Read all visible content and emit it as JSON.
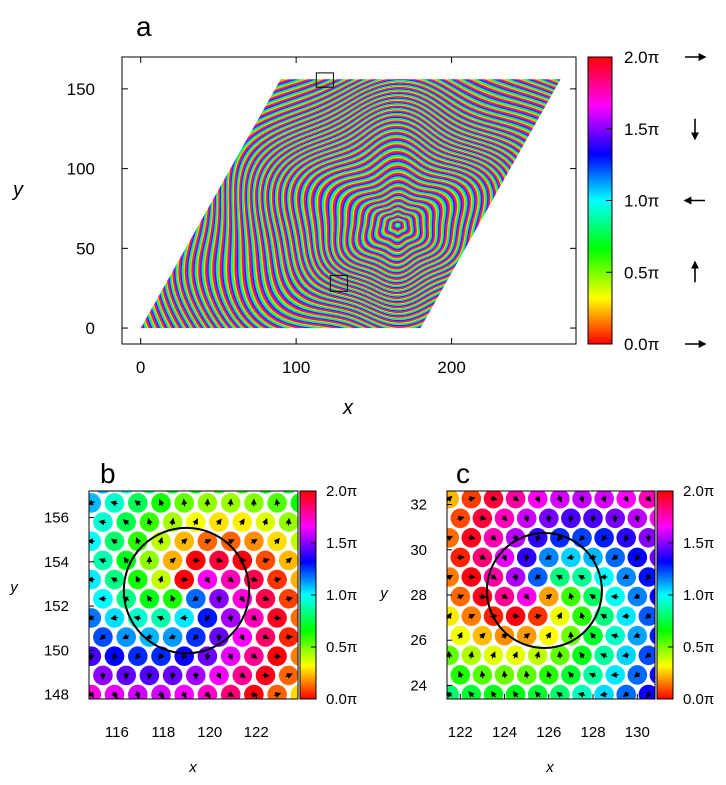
{
  "panels": [
    {
      "letter": "a",
      "xlabel": "x",
      "ylabel": "y",
      "xticks": [
        "0",
        "100",
        "200"
      ],
      "yticks": [
        "0",
        "50",
        "100",
        "150"
      ],
      "xlim": [
        -12,
        280
      ],
      "ylim": [
        -10,
        170
      ],
      "colorbar_ticks": [
        "0.0π",
        "0.5π",
        "1.0π",
        "1.5π",
        "2.0π"
      ],
      "colorbar_arrows": [
        "right",
        "up",
        "left",
        "down",
        "right"
      ]
    },
    {
      "letter": "b",
      "xlabel": "x",
      "ylabel": "y",
      "xticks": [
        "116",
        "118",
        "120",
        "122"
      ],
      "yticks": [
        "148",
        "150",
        "152",
        "154",
        "156"
      ],
      "xlim": [
        114.8,
        123.8
      ],
      "ylim": [
        147.8,
        157.2
      ],
      "colorbar_ticks": [
        "0.0π",
        "0.5π",
        "1.0π",
        "1.5π",
        "2.0π"
      ]
    },
    {
      "letter": "c",
      "xlabel": "x",
      "ylabel": "y",
      "xticks": [
        "122",
        "124",
        "126",
        "128",
        "130"
      ],
      "yticks": [
        "24",
        "26",
        "28",
        "30",
        "32"
      ],
      "xlim": [
        121.4,
        130.8
      ],
      "ylim": [
        23.4,
        32.6
      ],
      "colorbar_ticks": [
        "0.0π",
        "0.5π",
        "1.0π",
        "1.5π",
        "2.0π"
      ]
    }
  ],
  "chart_data": [
    {
      "type": "heatmap",
      "panel": "a",
      "xlabel": "x",
      "ylabel": "y",
      "xlim": [
        -12,
        280
      ],
      "ylim": [
        -10,
        170
      ],
      "xticks": [
        0,
        100,
        200
      ],
      "yticks": [
        0,
        50,
        100,
        150
      ],
      "domain_corners": [
        [
          0,
          0
        ],
        [
          180,
          0
        ],
        [
          270,
          156
        ],
        [
          90,
          156
        ]
      ],
      "value": "in-plane spin angle, 0 to 2π (stripe domains)",
      "color_scale": "hue wheel 0→2π",
      "zoom_boxes": [
        {
          "x": [
            113,
            124
          ],
          "y": [
            151,
            160
          ]
        },
        {
          "x": [
            122,
            133
          ],
          "y": [
            23,
            33
          ]
        }
      ]
    },
    {
      "type": "scatter",
      "panel": "b",
      "xlabel": "x",
      "ylabel": "y",
      "xlim": [
        114.8,
        123.8
      ],
      "ylim": [
        147.8,
        157.2
      ],
      "vortex_center": [
        119,
        152.7
      ],
      "circle_radius": 2.7,
      "value": "spin angle, color 0→2π, arrows show spin direction"
    },
    {
      "type": "scatter",
      "panel": "c",
      "xlabel": "x",
      "ylabel": "y",
      "xlim": [
        121.4,
        130.8
      ],
      "ylim": [
        23.4,
        32.6
      ],
      "vortex_center": [
        125.8,
        28.2
      ],
      "circle_radius": 2.6,
      "value": "spin angle, color 0→2π, arrows show spin direction"
    }
  ],
  "colors": {
    "frame": "#000000",
    "background": "#ffffff"
  }
}
